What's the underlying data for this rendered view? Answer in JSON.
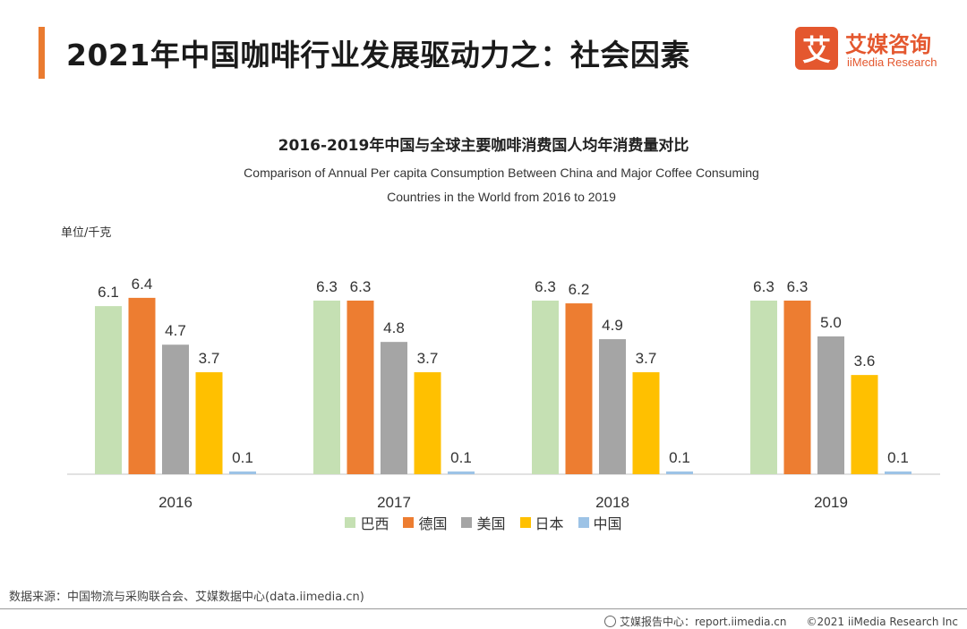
{
  "header": {
    "title": "2021年中国咖啡行业发展驱动力之：社会因素",
    "accent_color": "#ea7b30"
  },
  "logo": {
    "mark": "艾",
    "name_cn": "艾媒咨询",
    "name_en": "iiMedia Research",
    "color": "#e4572e"
  },
  "chart_data": {
    "type": "bar",
    "title": "2016-2019年中国与全球主要咖啡消费国人均年消费量对比",
    "subtitle_line1": "Comparison of Annual Per capita Consumption Between China and Major Coffee Consuming",
    "subtitle_line2": "Countries in the World from 2016 to 2019",
    "unit": "单位/千克",
    "categories": [
      "2016",
      "2017",
      "2018",
      "2019"
    ],
    "series": [
      {
        "name": "巴西",
        "color": "#c5e0b3",
        "values": [
          6.1,
          6.3,
          6.3,
          6.3
        ]
      },
      {
        "name": "德国",
        "color": "#ed7d31",
        "values": [
          6.4,
          6.3,
          6.2,
          6.3
        ]
      },
      {
        "name": "美国",
        "color": "#a5a5a5",
        "values": [
          4.7,
          4.8,
          4.9,
          5.0
        ]
      },
      {
        "name": "日本",
        "color": "#ffc000",
        "values": [
          3.7,
          3.7,
          3.7,
          3.6
        ]
      },
      {
        "name": "中国",
        "color": "#9dc3e6",
        "values": [
          0.1,
          0.1,
          0.1,
          0.1
        ]
      }
    ],
    "ylim": [
      0,
      7
    ],
    "grid": false,
    "legend_position": "bottom"
  },
  "footer": {
    "source": "数据来源：中国物流与采购联合会、艾媒数据中心(data.iimedia.cn)",
    "report_center": "艾媒报告中心：report.iimedia.cn",
    "copyright": "©2021  iiMedia Research  Inc"
  }
}
